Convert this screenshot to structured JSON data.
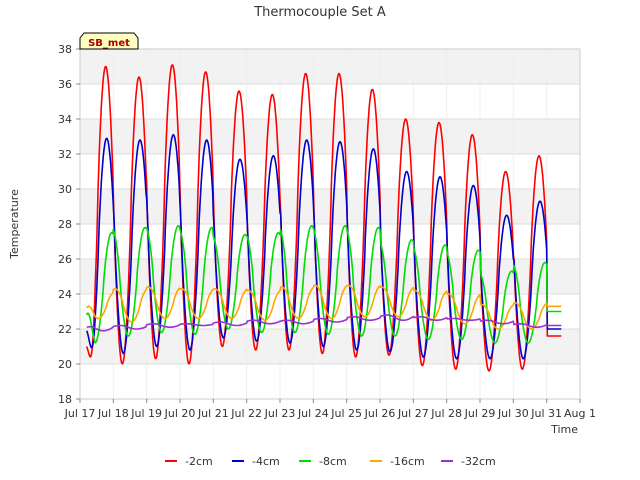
{
  "chart_data": {
    "type": "line",
    "title": "Thermocouple Set A",
    "xlabel": "Time",
    "ylabel": "Temperature",
    "ylim": [
      18,
      38
    ],
    "yticks": [
      18,
      20,
      22,
      24,
      26,
      28,
      30,
      32,
      34,
      36,
      38
    ],
    "xlim": [
      0,
      15
    ],
    "xticks": [
      {
        "x": 0,
        "label": "Jul 17"
      },
      {
        "x": 1,
        "label": "Jul 18"
      },
      {
        "x": 2,
        "label": "Jul 19"
      },
      {
        "x": 3,
        "label": "Jul 20"
      },
      {
        "x": 4,
        "label": "Jul 21"
      },
      {
        "x": 5,
        "label": "Jul 22"
      },
      {
        "x": 6,
        "label": "Jul 23"
      },
      {
        "x": 7,
        "label": "Jul 24"
      },
      {
        "x": 8,
        "label": "Jul 25"
      },
      {
        "x": 9,
        "label": "Jul 26"
      },
      {
        "x": 10,
        "label": "Jul 27"
      },
      {
        "x": 11,
        "label": "Jul 28"
      },
      {
        "x": 12,
        "label": "Jul 29"
      },
      {
        "x": 13,
        "label": "Jul 30"
      },
      {
        "x": 14,
        "label": "Jul 31"
      },
      {
        "x": 15,
        "label": "Aug 1"
      }
    ],
    "annotation": "SB_met",
    "grid": true,
    "legend_position": "bottom",
    "series": [
      {
        "name": "-2cm",
        "color": "#ff0000",
        "peak_x": 0.77,
        "start": [
          0.2,
          21.0
        ],
        "end": [
          14.45,
          21.6
        ],
        "days": [
          [
            19.4,
            37.0
          ],
          [
            20.0,
            36.4
          ],
          [
            20.3,
            37.1
          ],
          [
            20.0,
            36.7
          ],
          [
            21.0,
            35.6
          ],
          [
            20.8,
            35.4
          ],
          [
            20.8,
            36.6
          ],
          [
            20.6,
            36.6
          ],
          [
            20.4,
            35.7
          ],
          [
            20.5,
            34.0
          ],
          [
            19.9,
            33.8
          ],
          [
            19.7,
            33.1
          ],
          [
            19.6,
            31.0
          ],
          [
            19.7,
            31.9
          ],
          [
            21.6,
            21.6
          ]
        ]
      },
      {
        "name": "-4cm",
        "color": "#0000cc",
        "peak_x": 0.8,
        "start": [
          0.2,
          21.9
        ],
        "end": [
          14.45,
          22.0
        ],
        "days": [
          [
            20.0,
            32.9
          ],
          [
            20.6,
            32.8
          ],
          [
            21.0,
            33.1
          ],
          [
            20.8,
            32.8
          ],
          [
            21.5,
            31.7
          ],
          [
            21.3,
            31.9
          ],
          [
            21.2,
            32.8
          ],
          [
            21.0,
            32.7
          ],
          [
            20.8,
            32.3
          ],
          [
            20.7,
            31.0
          ],
          [
            20.4,
            30.7
          ],
          [
            20.3,
            30.2
          ],
          [
            20.3,
            28.5
          ],
          [
            20.3,
            29.3
          ],
          [
            22.0,
            22.0
          ]
        ]
      },
      {
        "name": "-8cm",
        "color": "#00dd00",
        "peak_x": 0.95,
        "start": [
          0.2,
          22.8
        ],
        "end": [
          14.45,
          23.0
        ],
        "days": [
          [
            21.2,
            27.5
          ],
          [
            21.6,
            27.8
          ],
          [
            21.8,
            27.9
          ],
          [
            21.7,
            27.8
          ],
          [
            22.0,
            27.4
          ],
          [
            21.8,
            27.5
          ],
          [
            21.8,
            27.9
          ],
          [
            21.7,
            27.9
          ],
          [
            21.6,
            27.8
          ],
          [
            21.6,
            27.1
          ],
          [
            21.4,
            26.8
          ],
          [
            21.4,
            26.5
          ],
          [
            21.2,
            25.3
          ],
          [
            21.2,
            25.8
          ],
          [
            23.0,
            23.0
          ]
        ]
      },
      {
        "name": "-16cm",
        "color": "#ffa500",
        "peak_x": 0.05,
        "start": [
          0.2,
          23.2
        ],
        "end": [
          14.45,
          23.3
        ],
        "days": [
          [
            22.6,
            24.1
          ],
          [
            22.4,
            24.3
          ],
          [
            22.6,
            24.4
          ],
          [
            22.6,
            24.3
          ],
          [
            22.6,
            24.3
          ],
          [
            22.5,
            24.2
          ],
          [
            22.6,
            24.4
          ],
          [
            22.6,
            24.5
          ],
          [
            22.7,
            24.5
          ],
          [
            22.7,
            24.4
          ],
          [
            22.5,
            24.2
          ],
          [
            22.3,
            24.0
          ],
          [
            22.0,
            23.4
          ],
          [
            22.0,
            23.5
          ],
          [
            23.3,
            23.3
          ]
        ]
      },
      {
        "name": "-32cm",
        "color": "#9b30d0",
        "peak_x": 0.2,
        "start": [
          0.2,
          22.1
        ],
        "end": [
          14.45,
          22.2
        ],
        "days": [
          [
            21.9,
            22.2
          ],
          [
            22.0,
            22.2
          ],
          [
            22.1,
            22.3
          ],
          [
            22.2,
            22.3
          ],
          [
            22.2,
            22.4
          ],
          [
            22.3,
            22.5
          ],
          [
            22.3,
            22.5
          ],
          [
            22.4,
            22.6
          ],
          [
            22.5,
            22.7
          ],
          [
            22.5,
            22.8
          ],
          [
            22.5,
            22.7
          ],
          [
            22.5,
            22.6
          ],
          [
            22.3,
            22.5
          ],
          [
            22.1,
            22.3
          ],
          [
            22.2,
            22.2
          ]
        ]
      }
    ]
  }
}
